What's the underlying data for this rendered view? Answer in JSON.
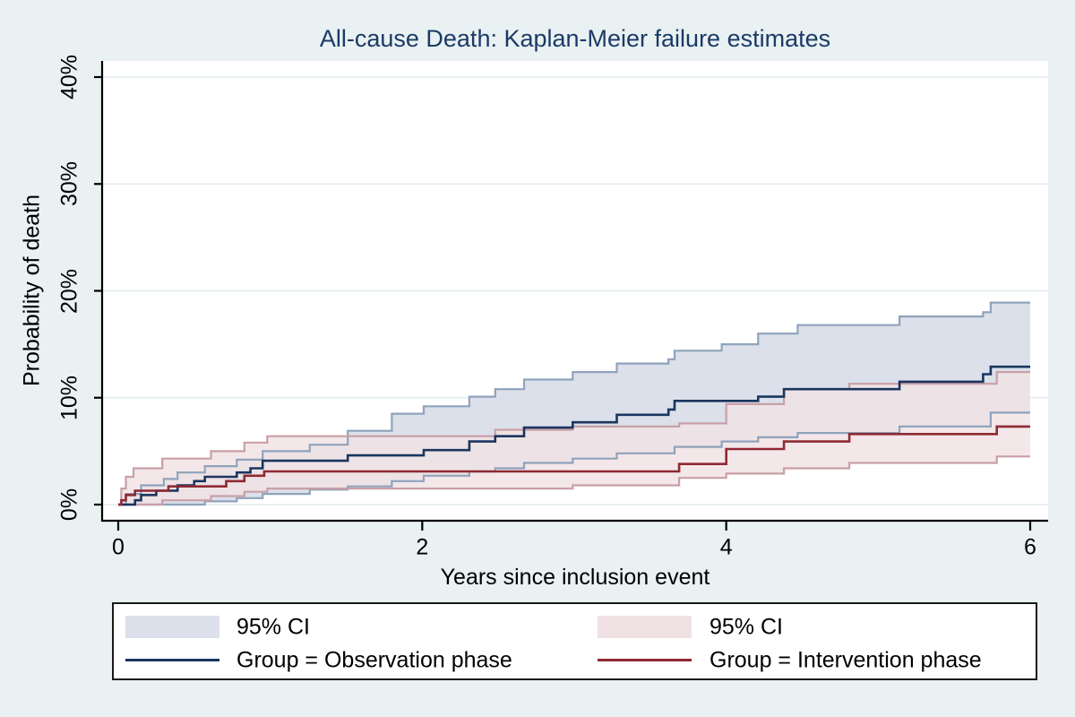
{
  "title": "All-cause Death: Kaplan-Meier failure estimates",
  "axes": {
    "x": {
      "label": "Years since inclusion event",
      "tick_labels": [
        "0",
        "2",
        "4",
        "6"
      ],
      "tick_values": [
        0,
        2,
        4,
        6
      ],
      "range": [
        0,
        6
      ]
    },
    "y": {
      "label": "Probability of death",
      "tick_labels": [
        "0%",
        "10%",
        "20%",
        "30%",
        "40%"
      ],
      "tick_values": [
        0,
        10,
        20,
        30,
        40
      ],
      "range": [
        0,
        40
      ]
    }
  },
  "legend": {
    "items": [
      {
        "ci_label": "95% CI",
        "group_label": "Group = Observation phase"
      },
      {
        "ci_label": "95% CI",
        "group_label": "Group = Intervention phase"
      }
    ]
  },
  "colors": {
    "background": "#e9f1f2",
    "plot_background": "#ffffff",
    "title_text": "#1c3a66",
    "grid_line": "#e2ecef",
    "axis_line": "#000000",
    "obs_line": "#1a355f",
    "obs_band_fill": "#dbe0ea",
    "obs_band_edge": "#8fa3bb",
    "int_line": "#8e2a33",
    "int_band_fill": "#f0e2e4",
    "int_band_edge": "#c99fa7",
    "legend_border": "#191919",
    "legend_background": "#ffffff"
  },
  "chart_data": {
    "type": "line",
    "step": true,
    "title": "All-cause Death: Kaplan-Meier failure estimates",
    "xlabel": "Years since inclusion event",
    "ylabel": "Probability of death",
    "xlim": [
      0,
      6
    ],
    "ylim": [
      0,
      40
    ],
    "y_unit": "percent",
    "grid": "horizontal only",
    "legend_position": "bottom box, two columns",
    "series": [
      {
        "name": "Group = Observation phase",
        "role": "obs_curve",
        "points": [
          [
            0,
            0
          ],
          [
            0.11,
            0.4
          ],
          [
            0.15,
            0.9
          ],
          [
            0.25,
            1.3
          ],
          [
            0.39,
            1.8
          ],
          [
            0.5,
            2.2
          ],
          [
            0.57,
            2.6
          ],
          [
            0.78,
            3.0
          ],
          [
            0.87,
            3.4
          ],
          [
            0.95,
            4.1
          ],
          [
            1.51,
            4.6
          ],
          [
            2.01,
            5.1
          ],
          [
            2.31,
            5.9
          ],
          [
            2.48,
            6.4
          ],
          [
            2.67,
            7.2
          ],
          [
            2.99,
            7.7
          ],
          [
            3.28,
            8.4
          ],
          [
            3.62,
            8.9
          ],
          [
            3.66,
            9.7
          ],
          [
            4.21,
            10.1
          ],
          [
            4.38,
            10.8
          ],
          [
            5.14,
            11.5
          ],
          [
            5.69,
            12.2
          ],
          [
            5.74,
            12.9
          ],
          [
            6,
            12.9
          ]
        ]
      },
      {
        "name": "Observation 95% CI upper",
        "role": "obs_upper",
        "points": [
          [
            0,
            0
          ],
          [
            0.05,
            1.0
          ],
          [
            0.15,
            1.8
          ],
          [
            0.3,
            2.4
          ],
          [
            0.39,
            3.0
          ],
          [
            0.57,
            3.6
          ],
          [
            0.78,
            4.2
          ],
          [
            0.95,
            5.0
          ],
          [
            1.26,
            5.6
          ],
          [
            1.51,
            6.9
          ],
          [
            1.8,
            8.5
          ],
          [
            2.01,
            9.2
          ],
          [
            2.31,
            10.1
          ],
          [
            2.48,
            10.8
          ],
          [
            2.67,
            11.7
          ],
          [
            2.99,
            12.4
          ],
          [
            3.28,
            13.2
          ],
          [
            3.62,
            13.6
          ],
          [
            3.66,
            14.4
          ],
          [
            3.97,
            15.0
          ],
          [
            4.21,
            16.0
          ],
          [
            4.47,
            16.8
          ],
          [
            5.14,
            17.6
          ],
          [
            5.69,
            18.0
          ],
          [
            5.74,
            18.9
          ],
          [
            6,
            18.9
          ]
        ]
      },
      {
        "name": "Observation 95% CI lower",
        "role": "obs_lower",
        "points": [
          [
            0,
            0
          ],
          [
            0.57,
            0.3
          ],
          [
            0.78,
            0.6
          ],
          [
            0.95,
            1.0
          ],
          [
            1.26,
            1.4
          ],
          [
            1.51,
            1.7
          ],
          [
            1.8,
            2.2
          ],
          [
            2.01,
            2.7
          ],
          [
            2.31,
            3.1
          ],
          [
            2.48,
            3.4
          ],
          [
            2.67,
            3.9
          ],
          [
            2.99,
            4.3
          ],
          [
            3.28,
            4.8
          ],
          [
            3.66,
            5.4
          ],
          [
            3.97,
            5.9
          ],
          [
            4.21,
            6.3
          ],
          [
            4.47,
            6.7
          ],
          [
            5.14,
            7.3
          ],
          [
            5.74,
            8.6
          ],
          [
            6,
            8.6
          ]
        ]
      },
      {
        "name": "Group = Intervention phase",
        "role": "int_curve",
        "points": [
          [
            0,
            0
          ],
          [
            0.02,
            0.4
          ],
          [
            0.05,
            0.9
          ],
          [
            0.11,
            1.3
          ],
          [
            0.33,
            1.7
          ],
          [
            0.71,
            2.2
          ],
          [
            0.83,
            2.7
          ],
          [
            0.96,
            3.1
          ],
          [
            3.69,
            3.8
          ],
          [
            4.0,
            5.2
          ],
          [
            4.38,
            5.9
          ],
          [
            4.81,
            6.6
          ],
          [
            5.78,
            7.3
          ],
          [
            6,
            7.3
          ]
        ]
      },
      {
        "name": "Intervention 95% CI upper",
        "role": "int_upper",
        "points": [
          [
            0,
            0
          ],
          [
            0.02,
            1.5
          ],
          [
            0.05,
            2.6
          ],
          [
            0.1,
            3.4
          ],
          [
            0.29,
            4.3
          ],
          [
            0.61,
            5.0
          ],
          [
            0.83,
            5.8
          ],
          [
            0.98,
            6.4
          ],
          [
            2.48,
            7.0
          ],
          [
            2.99,
            7.3
          ],
          [
            3.69,
            7.6
          ],
          [
            4.0,
            9.4
          ],
          [
            4.38,
            10.8
          ],
          [
            4.81,
            11.3
          ],
          [
            5.78,
            12.4
          ],
          [
            6,
            12.4
          ]
        ]
      },
      {
        "name": "Intervention 95% CI lower",
        "role": "int_lower",
        "points": [
          [
            0,
            0
          ],
          [
            0.29,
            0.4
          ],
          [
            0.61,
            0.8
          ],
          [
            0.83,
            1.2
          ],
          [
            0.98,
            1.5
          ],
          [
            2.99,
            1.8
          ],
          [
            3.69,
            2.5
          ],
          [
            4.0,
            2.9
          ],
          [
            4.38,
            3.4
          ],
          [
            4.81,
            3.9
          ],
          [
            5.78,
            4.5
          ],
          [
            6,
            4.5
          ]
        ]
      }
    ],
    "bands": [
      {
        "name": "Observation phase 95% CI band",
        "upper_role": "obs_upper",
        "lower_role": "obs_lower"
      },
      {
        "name": "Intervention phase 95% CI band",
        "upper_role": "int_upper",
        "lower_role": "int_lower"
      }
    ]
  }
}
